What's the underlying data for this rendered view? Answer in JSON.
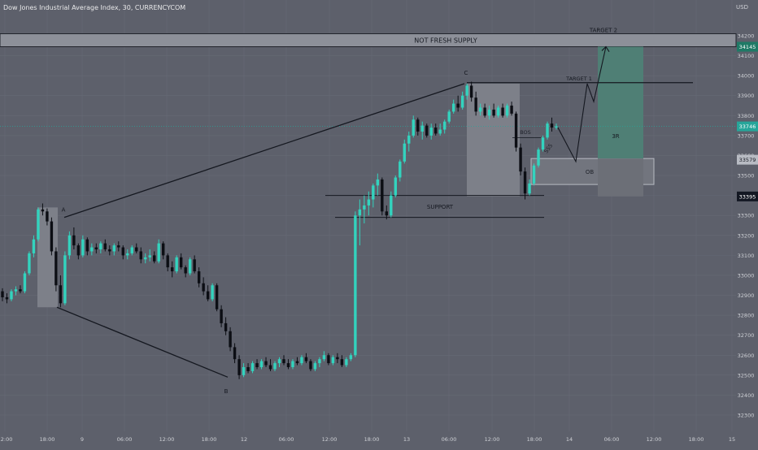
{
  "chart_data": {
    "type": "candlestick",
    "title": "Dow Jones Industrial Average Index, 30, CURRENCYCOM",
    "unit": "USD",
    "last_price": "33746",
    "current_price": "33746",
    "y_ticks": [
      "34200",
      "34100",
      "34000",
      "33900",
      "33800",
      "33700",
      "33600",
      "33500",
      "33400",
      "33300",
      "33200",
      "33100",
      "33000",
      "32900",
      "32800",
      "32700",
      "32600",
      "32500",
      "32400",
      "32300"
    ],
    "x_ticks": [
      "12:00",
      "18:00",
      "9",
      "06:00",
      "12:00",
      "18:00",
      "12",
      "06:00",
      "12:00",
      "18:00",
      "13",
      "06:00",
      "12:00",
      "18:00",
      "14",
      "06:00",
      "12:00",
      "18:00",
      "15"
    ],
    "ylim": [
      32250,
      34250
    ],
    "price_labels": [
      {
        "value": "34145",
        "price": 34145,
        "color": "#1f7a66",
        "kind": "zone"
      },
      {
        "value": "33746",
        "price": 33746,
        "color": "#26a69a",
        "kind": "current"
      },
      {
        "value": "33579",
        "price": 33579,
        "color": "#b8bbc3",
        "kind": "ob"
      },
      {
        "value": "33395",
        "price": 33395,
        "color": "#131722",
        "kind": "support"
      }
    ],
    "annotations": {
      "not_fresh_supply": "NOT FRESH SUPPLY",
      "target2": "TARGET 2",
      "target1": "TARGET 1",
      "support": "SUPPORT",
      "ob": "OB",
      "bos": "BOS",
      "sss": "SSS",
      "rr": "3R",
      "a": "A",
      "b": "B",
      "c": "C"
    },
    "levels": {
      "supply_top": 34210,
      "supply_bottom": 34145,
      "target1": 33965,
      "support_upper": 33400,
      "support_lower": 33290,
      "ob_top": 33585,
      "ob_bottom": 33455,
      "target_box_top": 34145,
      "target_box_bottom": 33585,
      "stop_box_bottom": 33395
    },
    "candles_ohlc": [
      [
        32920,
        32935,
        32870,
        32890
      ],
      [
        32890,
        32910,
        32860,
        32880
      ],
      [
        32880,
        32930,
        32870,
        32920
      ],
      [
        32920,
        32945,
        32900,
        32930
      ],
      [
        32930,
        32950,
        32910,
        32920
      ],
      [
        32920,
        33020,
        32910,
        33010
      ],
      [
        33010,
        33120,
        33000,
        33110
      ],
      [
        33110,
        33200,
        33090,
        33180
      ],
      [
        33180,
        33340,
        33170,
        33330
      ],
      [
        33330,
        33360,
        33300,
        33320
      ],
      [
        33320,
        33335,
        33250,
        33270
      ],
      [
        33270,
        33290,
        33100,
        33120
      ],
      [
        33120,
        33140,
        32920,
        32950
      ],
      [
        32950,
        33000,
        32840,
        32860
      ],
      [
        32860,
        33120,
        32850,
        33100
      ],
      [
        33100,
        33220,
        33080,
        33200
      ],
      [
        33200,
        33240,
        33130,
        33150
      ],
      [
        33150,
        33160,
        33080,
        33100
      ],
      [
        33100,
        33200,
        33090,
        33180
      ],
      [
        33180,
        33190,
        33100,
        33120
      ],
      [
        33120,
        33160,
        33100,
        33140
      ],
      [
        33140,
        33160,
        33110,
        33130
      ],
      [
        33130,
        33170,
        33110,
        33160
      ],
      [
        33160,
        33180,
        33120,
        33130
      ],
      [
        33130,
        33150,
        33100,
        33120
      ],
      [
        33120,
        33160,
        33100,
        33150
      ],
      [
        33150,
        33170,
        33120,
        33140
      ],
      [
        33140,
        33150,
        33080,
        33100
      ],
      [
        33100,
        33130,
        33080,
        33110
      ],
      [
        33110,
        33150,
        33100,
        33140
      ],
      [
        33140,
        33160,
        33110,
        33120
      ],
      [
        33120,
        33140,
        33060,
        33080
      ],
      [
        33080,
        33110,
        33060,
        33090
      ],
      [
        33090,
        33130,
        33070,
        33100
      ],
      [
        33100,
        33120,
        33060,
        33070
      ],
      [
        33070,
        33180,
        33060,
        33160
      ],
      [
        33160,
        33170,
        33080,
        33100
      ],
      [
        33100,
        33110,
        33020,
        33040
      ],
      [
        33040,
        33070,
        32990,
        33020
      ],
      [
        33020,
        33100,
        33010,
        33090
      ],
      [
        33090,
        33110,
        33030,
        33040
      ],
      [
        33040,
        33050,
        32990,
        33010
      ],
      [
        33010,
        33090,
        33000,
        33080
      ],
      [
        33080,
        33100,
        33010,
        33020
      ],
      [
        33020,
        33040,
        32940,
        32960
      ],
      [
        32960,
        32990,
        32900,
        32920
      ],
      [
        32920,
        32950,
        32870,
        32880
      ],
      [
        32880,
        32960,
        32870,
        32950
      ],
      [
        32950,
        32960,
        32820,
        32830
      ],
      [
        32830,
        32850,
        32740,
        32760
      ],
      [
        32760,
        32790,
        32700,
        32720
      ],
      [
        32720,
        32740,
        32620,
        32640
      ],
      [
        32640,
        32660,
        32560,
        32580
      ],
      [
        32580,
        32600,
        32480,
        32500
      ],
      [
        32500,
        32560,
        32490,
        32540
      ],
      [
        32540,
        32560,
        32510,
        32520
      ],
      [
        32520,
        32570,
        32510,
        32560
      ],
      [
        32560,
        32580,
        32530,
        32540
      ],
      [
        32540,
        32580,
        32530,
        32570
      ],
      [
        32570,
        32590,
        32540,
        32550
      ],
      [
        32550,
        32580,
        32520,
        32530
      ],
      [
        32530,
        32570,
        32520,
        32560
      ],
      [
        32560,
        32590,
        32540,
        32580
      ],
      [
        32580,
        32600,
        32550,
        32560
      ],
      [
        32560,
        32580,
        32530,
        32540
      ],
      [
        32540,
        32580,
        32530,
        32570
      ],
      [
        32570,
        32590,
        32550,
        32560
      ],
      [
        32560,
        32600,
        32550,
        32590
      ],
      [
        32590,
        32610,
        32560,
        32570
      ],
      [
        32570,
        32580,
        32520,
        32530
      ],
      [
        32530,
        32570,
        32520,
        32560
      ],
      [
        32560,
        32590,
        32540,
        32580
      ],
      [
        32580,
        32620,
        32570,
        32600
      ],
      [
        32600,
        32610,
        32550,
        32560
      ],
      [
        32560,
        32600,
        32550,
        32590
      ],
      [
        32590,
        32610,
        32560,
        32580
      ],
      [
        32580,
        32600,
        32540,
        32550
      ],
      [
        32550,
        32590,
        32540,
        32580
      ],
      [
        32580,
        32610,
        32570,
        32600
      ],
      [
        32600,
        33320,
        32590,
        33300
      ],
      [
        33300,
        33380,
        33150,
        33330
      ],
      [
        33330,
        33400,
        33260,
        33350
      ],
      [
        33350,
        33420,
        33300,
        33380
      ],
      [
        33380,
        33460,
        33340,
        33450
      ],
      [
        33450,
        33510,
        33400,
        33480
      ],
      [
        33480,
        33490,
        33300,
        33320
      ],
      [
        33320,
        33350,
        33280,
        33300
      ],
      [
        33300,
        33420,
        33290,
        33400
      ],
      [
        33400,
        33500,
        33390,
        33490
      ],
      [
        33490,
        33580,
        33470,
        33570
      ],
      [
        33570,
        33680,
        33560,
        33660
      ],
      [
        33660,
        33720,
        33620,
        33700
      ],
      [
        33700,
        33800,
        33690,
        33780
      ],
      [
        33780,
        33790,
        33700,
        33720
      ],
      [
        33720,
        33770,
        33680,
        33750
      ],
      [
        33750,
        33760,
        33690,
        33700
      ],
      [
        33700,
        33760,
        33680,
        33740
      ],
      [
        33740,
        33760,
        33700,
        33710
      ],
      [
        33710,
        33760,
        33700,
        33730
      ],
      [
        33730,
        33780,
        33710,
        33770
      ],
      [
        33770,
        33830,
        33760,
        33820
      ],
      [
        33820,
        33880,
        33810,
        33860
      ],
      [
        33860,
        33900,
        33820,
        33840
      ],
      [
        33840,
        33920,
        33830,
        33900
      ],
      [
        33900,
        33960,
        33880,
        33950
      ],
      [
        33950,
        33970,
        33870,
        33890
      ],
      [
        33890,
        33920,
        33800,
        33820
      ],
      [
        33820,
        33860,
        33800,
        33840
      ],
      [
        33840,
        33860,
        33790,
        33800
      ],
      [
        33800,
        33850,
        33780,
        33830
      ],
      [
        33830,
        33860,
        33790,
        33800
      ],
      [
        33800,
        33850,
        33790,
        33840
      ],
      [
        33840,
        33860,
        33790,
        33800
      ],
      [
        33800,
        33860,
        33790,
        33850
      ],
      [
        33850,
        33870,
        33800,
        33810
      ],
      [
        33810,
        33820,
        33620,
        33640
      ],
      [
        33640,
        33660,
        33500,
        33520
      ],
      [
        33520,
        33540,
        33380,
        33410
      ],
      [
        33410,
        33480,
        33400,
        33460
      ],
      [
        33460,
        33560,
        33450,
        33550
      ],
      [
        33550,
        33640,
        33540,
        33630
      ],
      [
        33630,
        33700,
        33620,
        33690
      ],
      [
        33690,
        33770,
        33680,
        33760
      ],
      [
        33760,
        33790,
        33720,
        33740
      ],
      [
        33740,
        33760,
        33730,
        33746
      ]
    ]
  }
}
